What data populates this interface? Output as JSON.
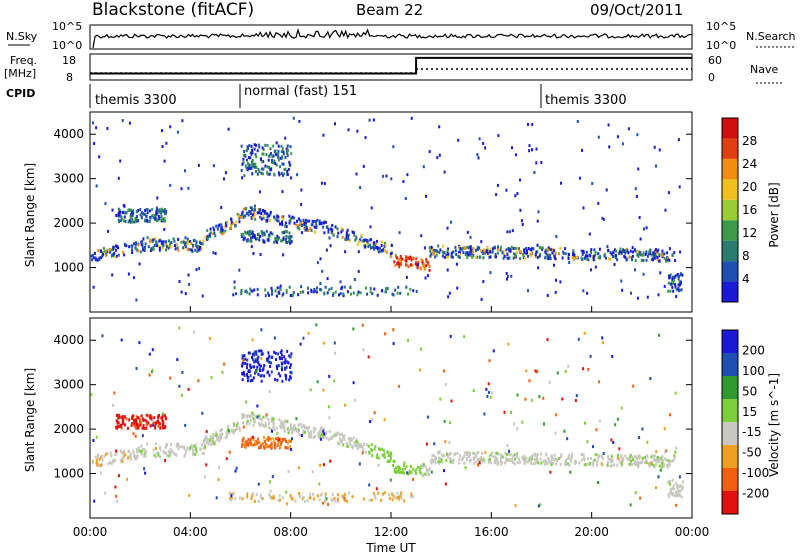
{
  "header": {
    "station": "Blackstone (fitACF)",
    "beam": "Beam 22",
    "date": "09/Oct/2011"
  },
  "noise_panel": {
    "left_label": "N.Sky",
    "right_label": "N.Search",
    "left_ticks": [
      "10^5",
      "10^0"
    ],
    "right_ticks": [
      "10^5",
      "10^0"
    ]
  },
  "freq_panel": {
    "left_label_1": "Freq.",
    "left_label_2": "[MHz]",
    "right_label": "Nave",
    "left_ticks": [
      "18",
      "8"
    ],
    "right_ticks": [
      "60",
      "0"
    ],
    "freq_step": [
      {
        "t_hours": 0.0,
        "level": "low"
      },
      {
        "t_hours": 13.0,
        "level": "high"
      }
    ]
  },
  "cpid_panel": {
    "label": "CPID",
    "segments": [
      {
        "start_hours": 0.0,
        "label": "themis 3300"
      },
      {
        "start_hours": 6.0,
        "label": "normal (fast) 151"
      },
      {
        "start_hours": 18.0,
        "label": "themis 3300"
      }
    ]
  },
  "power_panel": {
    "ylabel": "Slant Range [km]",
    "colorbar_label": "Power [dB]",
    "colorbar_ticks": [
      "28",
      "24",
      "20",
      "16",
      "12",
      "8",
      "4"
    ],
    "colors": [
      "#1a1ad6",
      "#1f4fb0",
      "#2a7c6e",
      "#3c9a4a",
      "#9acd32",
      "#f0c020",
      "#f08c10",
      "#e04010",
      "#d01010"
    ]
  },
  "velocity_panel": {
    "ylabel": "Slant Range [km]",
    "colorbar_label": "Velocity [m s^-1]",
    "colorbar_ticks": [
      "200",
      "100",
      "50",
      "15",
      "-15",
      "-50",
      "-100",
      "-200"
    ],
    "colors": [
      "#1a1ad6",
      "#1f4fb0",
      "#2e9a30",
      "#7ccf3a",
      "#c8c8c0",
      "#f0a020",
      "#f06010",
      "#e01010"
    ]
  },
  "x_axis": {
    "label": "Time UT",
    "ticks": [
      "00:00",
      "04:00",
      "08:00",
      "12:00",
      "16:00",
      "20:00",
      "00:00"
    ]
  },
  "chart_data": [
    {
      "type": "line",
      "title": "N.Sky / N.Search",
      "x_range_hours": [
        0,
        24
      ],
      "y_scale": "log",
      "ylim": [
        1,
        100000
      ]
    },
    {
      "type": "line",
      "title": "Freq. [MHz] / Nave",
      "x_range_hours": [
        0,
        24
      ],
      "ylim": [
        8,
        18
      ],
      "series": [
        {
          "name": "Freq.",
          "x": [
            0,
            13,
            13,
            24
          ],
          "y": [
            10.5,
            10.5,
            16.5,
            16.5
          ]
        },
        {
          "name": "Nave",
          "x": [
            0,
            13,
            13,
            24
          ],
          "y": [
            10,
            10,
            18,
            18
          ]
        }
      ]
    },
    {
      "type": "heatmap",
      "title": "Power [dB]",
      "x_range_hours": [
        0,
        24
      ],
      "ylim": [
        0,
        4500
      ],
      "y_ticks": [
        1000,
        2000,
        3000,
        4000
      ],
      "zlim": [
        0,
        30
      ],
      "features": [
        {
          "name": "main echo band",
          "hours": [
            0,
            23.2
          ],
          "range_km": [
            1200,
            1800
          ]
        },
        {
          "name": "upper echo 01-03h",
          "hours": [
            1,
            3
          ],
          "range_km": [
            2050,
            2350
          ]
        },
        {
          "name": "high range 06-08h",
          "hours": [
            6,
            8
          ],
          "range_km": [
            3200,
            3800
          ]
        },
        {
          "name": "ground scatter 12-13h",
          "hours": [
            11.5,
            13.5
          ],
          "range_km": [
            900,
            1300
          ]
        },
        {
          "name": "near range",
          "hours": [
            23,
            23.6
          ],
          "range_km": [
            500,
            900
          ]
        }
      ]
    },
    {
      "type": "heatmap",
      "title": "Velocity [m s^-1]",
      "x_range_hours": [
        0,
        24
      ],
      "ylim": [
        0,
        4500
      ],
      "y_ticks": [
        1000,
        2000,
        3000,
        4000
      ],
      "zlim": [
        -200,
        200
      ],
      "features": [
        {
          "name": "ground scatter band",
          "hours": [
            0,
            23.5
          ],
          "range_km": [
            1300,
            1600
          ],
          "velocity": 0
        },
        {
          "name": "negative 01-03h",
          "hours": [
            1,
            3
          ],
          "range_km": [
            2050,
            2350
          ],
          "velocity": -200
        },
        {
          "name": "positive 06-08h",
          "hours": [
            6,
            8
          ],
          "range_km": [
            3000,
            3800
          ],
          "velocity": 200
        },
        {
          "name": "negative 06-08h",
          "hours": [
            6,
            8
          ],
          "range_km": [
            1600,
            1800
          ],
          "velocity": -150
        },
        {
          "name": "green 12-13h",
          "hours": [
            11.5,
            13
          ],
          "range_km": [
            1000,
            1600
          ],
          "velocity": 30
        }
      ]
    }
  ]
}
